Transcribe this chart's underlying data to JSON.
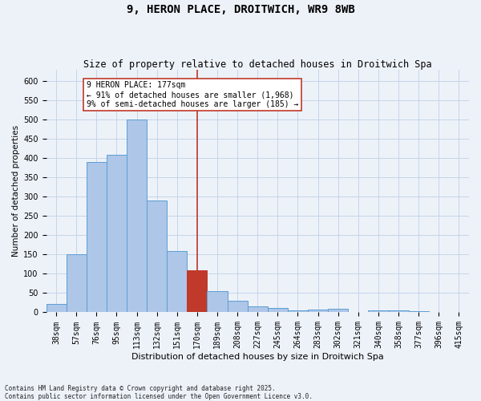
{
  "title": "9, HERON PLACE, DROITWICH, WR9 8WB",
  "subtitle": "Size of property relative to detached houses in Droitwich Spa",
  "xlabel": "Distribution of detached houses by size in Droitwich Spa",
  "ylabel": "Number of detached properties",
  "footer": "Contains HM Land Registry data © Crown copyright and database right 2025.\nContains public sector information licensed under the Open Government Licence v3.0.",
  "categories": [
    "38sqm",
    "57sqm",
    "76sqm",
    "95sqm",
    "113sqm",
    "132sqm",
    "151sqm",
    "170sqm",
    "189sqm",
    "208sqm",
    "227sqm",
    "245sqm",
    "264sqm",
    "283sqm",
    "302sqm",
    "321sqm",
    "340sqm",
    "358sqm",
    "377sqm",
    "396sqm",
    "415sqm"
  ],
  "values": [
    22,
    150,
    390,
    410,
    500,
    290,
    160,
    110,
    55,
    30,
    16,
    11,
    5,
    8,
    10,
    0,
    5,
    5,
    3,
    0,
    0
  ],
  "bar_color": "#aec6e8",
  "bar_edge_color": "#5a9fd4",
  "highlight_bar_index": 7,
  "highlight_bar_color": "#c0392b",
  "highlight_bar_edge_color": "#c0392b",
  "vline_color": "#c0392b",
  "annotation_text": "9 HERON PLACE: 177sqm\n← 91% of detached houses are smaller (1,968)\n9% of semi-detached houses are larger (185) →",
  "annotation_box_color": "#ffffff",
  "annotation_box_edge_color": "#c0392b",
  "ylim": [
    0,
    630
  ],
  "yticks": [
    0,
    50,
    100,
    150,
    200,
    250,
    300,
    350,
    400,
    450,
    500,
    550,
    600
  ],
  "background_color": "#edf2f9",
  "grid_color": "#c5d5e8",
  "title_fontsize": 10,
  "subtitle_fontsize": 8.5,
  "xlabel_fontsize": 8,
  "ylabel_fontsize": 7.5,
  "tick_fontsize": 7,
  "annotation_fontsize": 7,
  "footer_fontsize": 5.5
}
